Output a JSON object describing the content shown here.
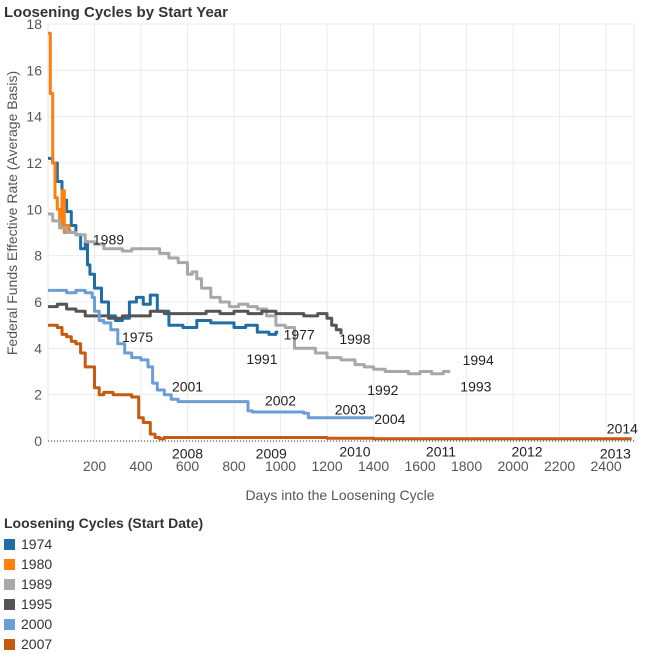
{
  "chart_data": {
    "type": "line",
    "title": "Loosening Cycles by Start Year",
    "xlabel": "Days into the Loosening Cycle",
    "ylabel": "Federal Funds Effective Rate (Average Basis)",
    "xlim": [
      0,
      2520
    ],
    "ylim": [
      0,
      18
    ],
    "xticks": [
      200,
      400,
      600,
      800,
      1000,
      1200,
      1400,
      1600,
      1800,
      2000,
      2200,
      2400
    ],
    "yticks": [
      0,
      2,
      4,
      6,
      8,
      10,
      12,
      14,
      16,
      18
    ],
    "grid": true,
    "legend": {
      "title": "Loosening Cycles (Start Date)",
      "placement": "bottom-left"
    },
    "series": [
      {
        "name": "1974",
        "color": "#1f6fa6",
        "x": [
          0,
          20,
          40,
          60,
          80,
          100,
          120,
          140,
          160,
          170,
          180,
          200,
          230,
          260,
          290,
          320,
          350,
          380,
          410,
          440,
          470,
          520,
          580,
          640,
          700,
          760,
          800,
          850,
          900,
          950,
          980,
          990
        ],
        "y": [
          12.2,
          12.0,
          11.2,
          10.4,
          9.9,
          9.3,
          8.9,
          8.3,
          8.6,
          7.6,
          7.2,
          6.6,
          6.0,
          5.4,
          5.2,
          5.3,
          6.0,
          6.2,
          5.9,
          6.3,
          5.6,
          5.0,
          4.9,
          5.2,
          5.1,
          5.1,
          4.9,
          5.0,
          4.7,
          4.6,
          4.7,
          4.7
        ]
      },
      {
        "name": "1980",
        "color": "#ff7f0e",
        "x": [
          0,
          10,
          20,
          30,
          40,
          50,
          60,
          70,
          80,
          90,
          100
        ],
        "y": [
          17.6,
          15.0,
          12.0,
          10.5,
          10.0,
          9.3,
          10.8,
          9.0,
          9.3,
          9.1,
          9.1
        ]
      },
      {
        "name": "1989",
        "color": "#a8a8a8",
        "x": [
          0,
          20,
          50,
          80,
          120,
          160,
          200,
          240,
          280,
          320,
          360,
          400,
          440,
          480,
          520,
          560,
          600,
          620,
          640,
          660,
          700,
          740,
          780,
          820,
          860,
          900,
          940,
          980,
          1020,
          1060,
          1100,
          1150,
          1200,
          1260,
          1320,
          1360,
          1400,
          1450,
          1500,
          1550,
          1600,
          1650,
          1700,
          1730
        ],
        "y": [
          9.8,
          9.5,
          9.2,
          9.0,
          8.9,
          8.6,
          8.5,
          8.3,
          8.3,
          8.2,
          8.3,
          8.3,
          8.3,
          8.1,
          7.9,
          7.7,
          7.2,
          7.3,
          7.0,
          6.6,
          6.2,
          6.0,
          5.8,
          5.9,
          5.8,
          5.7,
          5.4,
          5.0,
          4.9,
          4.0,
          4.0,
          3.8,
          3.6,
          3.5,
          3.3,
          3.2,
          3.1,
          3.0,
          3.0,
          2.9,
          3.0,
          2.9,
          3.0,
          3.0
        ]
      },
      {
        "name": "1995",
        "color": "#555555",
        "x": [
          0,
          40,
          80,
          120,
          160,
          200,
          260,
          320,
          380,
          440,
          500,
          560,
          620,
          680,
          740,
          800,
          860,
          920,
          980,
          1040,
          1100,
          1160,
          1200,
          1220,
          1240,
          1260
        ],
        "y": [
          5.8,
          5.9,
          5.7,
          5.6,
          5.4,
          5.4,
          5.3,
          5.4,
          5.4,
          5.6,
          5.5,
          5.5,
          5.5,
          5.6,
          5.5,
          5.6,
          5.5,
          5.6,
          5.5,
          5.5,
          5.4,
          5.5,
          5.3,
          5.0,
          4.8,
          4.6
        ]
      },
      {
        "name": "2000",
        "color": "#6a9ed4",
        "x": [
          0,
          40,
          80,
          120,
          160,
          190,
          200,
          220,
          240,
          270,
          300,
          330,
          360,
          400,
          430,
          450,
          470,
          500,
          530,
          560,
          600,
          660,
          720,
          780,
          840,
          860,
          880,
          940,
          1000,
          1060,
          1100,
          1120,
          1140,
          1200,
          1260,
          1320,
          1400
        ],
        "y": [
          6.5,
          6.5,
          6.4,
          6.5,
          6.4,
          6.2,
          5.6,
          5.2,
          5.1,
          4.8,
          4.2,
          3.8,
          3.6,
          3.5,
          3.2,
          2.5,
          2.2,
          2.0,
          1.8,
          1.7,
          1.7,
          1.7,
          1.7,
          1.7,
          1.7,
          1.3,
          1.25,
          1.25,
          1.25,
          1.25,
          1.2,
          1.0,
          1.0,
          1.0,
          1.0,
          1.0,
          1.0
        ]
      },
      {
        "name": "2007",
        "color": "#c65a11",
        "x": [
          0,
          20,
          40,
          60,
          80,
          100,
          120,
          140,
          160,
          200,
          220,
          240,
          280,
          320,
          360,
          390,
          410,
          440,
          460,
          480,
          500,
          600,
          800,
          1000,
          1200,
          1400,
          1600,
          1800,
          2000,
          2200,
          2400,
          2510
        ],
        "y": [
          5.0,
          5.0,
          4.9,
          4.6,
          4.5,
          4.3,
          4.2,
          3.8,
          3.2,
          2.3,
          2.0,
          2.1,
          2.0,
          2.0,
          1.9,
          1.0,
          0.8,
          0.3,
          0.15,
          0.1,
          0.15,
          0.15,
          0.15,
          0.15,
          0.12,
          0.1,
          0.1,
          0.1,
          0.1,
          0.1,
          0.1,
          0.1
        ]
      }
    ],
    "annotations": [
      {
        "text": "1989",
        "x": 260,
        "y": 8.7
      },
      {
        "text": "1975",
        "x": 385,
        "y": 4.5
      },
      {
        "text": "1977",
        "x": 1080,
        "y": 4.6
      },
      {
        "text": "1991",
        "x": 920,
        "y": 3.55
      },
      {
        "text": "1998",
        "x": 1320,
        "y": 4.4
      },
      {
        "text": "1994",
        "x": 1850,
        "y": 3.5
      },
      {
        "text": "1992",
        "x": 1440,
        "y": 2.2
      },
      {
        "text": "1993",
        "x": 1840,
        "y": 2.35
      },
      {
        "text": "2001",
        "x": 600,
        "y": 2.35
      },
      {
        "text": "2002",
        "x": 1000,
        "y": 1.75
      },
      {
        "text": "2003",
        "x": 1300,
        "y": 1.35
      },
      {
        "text": "2004",
        "x": 1470,
        "y": 0.95
      },
      {
        "text": "2008",
        "x": 600,
        "y": -0.55
      },
      {
        "text": "2009",
        "x": 960,
        "y": -0.55
      },
      {
        "text": "2010",
        "x": 1320,
        "y": -0.45
      },
      {
        "text": "2011",
        "x": 1690,
        "y": -0.45
      },
      {
        "text": "2012",
        "x": 2060,
        "y": -0.45
      },
      {
        "text": "2013",
        "x": 2440,
        "y": -0.55
      },
      {
        "text": "2014",
        "x": 2470,
        "y": 0.55
      }
    ]
  }
}
